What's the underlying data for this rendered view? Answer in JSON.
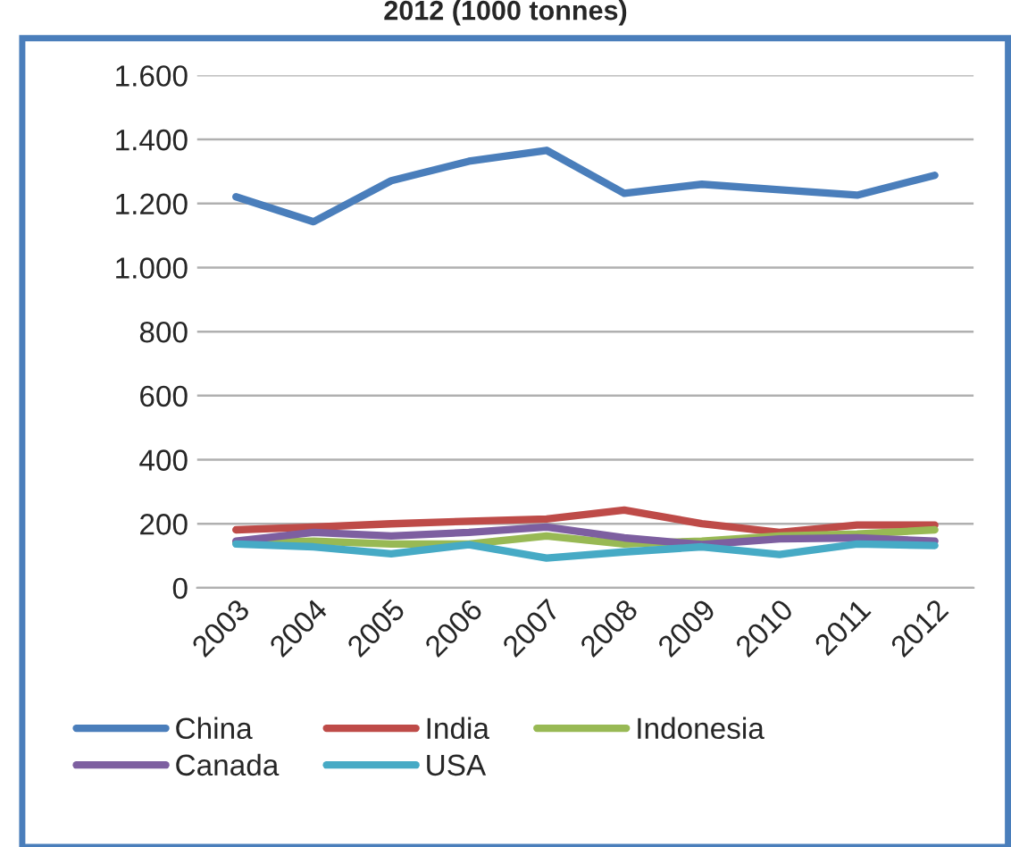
{
  "chart_data": {
    "type": "line",
    "title": "2012 (1000 tonnes)",
    "categories": [
      "2003",
      "2004",
      "2005",
      "2006",
      "2007",
      "2008",
      "2009",
      "2010",
      "2011",
      "2012"
    ],
    "series": [
      {
        "name": "China",
        "color": "#4a7ebb",
        "values": [
          1221,
          1143,
          1271,
          1332,
          1366,
          1232,
          1260,
          1243,
          1226,
          1288
        ]
      },
      {
        "name": "India",
        "color": "#be4b48",
        "values": [
          181,
          190,
          200,
          208,
          215,
          243,
          200,
          173,
          196,
          196
        ]
      },
      {
        "name": "Indonesia",
        "color": "#98b954",
        "values": [
          140,
          146,
          137,
          137,
          162,
          137,
          146,
          162,
          168,
          181
        ]
      },
      {
        "name": "Canada",
        "color": "#7d5fa0",
        "values": [
          146,
          173,
          162,
          173,
          190,
          156,
          135,
          153,
          156,
          146
        ]
      },
      {
        "name": "USA",
        "color": "#46aac5",
        "values": [
          137,
          128,
          106,
          135,
          93,
          112,
          128,
          104,
          137,
          132
        ]
      }
    ],
    "ylim": [
      0,
      1600
    ],
    "yticks": [
      0,
      200,
      400,
      600,
      800,
      {
        "value": 1000,
        "label": "1.000"
      },
      {
        "value": 1200,
        "label": "1.200"
      },
      {
        "value": 1400,
        "label": "1.400"
      },
      {
        "value": 1600,
        "label": "1.600"
      }
    ],
    "grid": "y",
    "legend": "bottom",
    "marker": "none",
    "line_style": "solid"
  }
}
